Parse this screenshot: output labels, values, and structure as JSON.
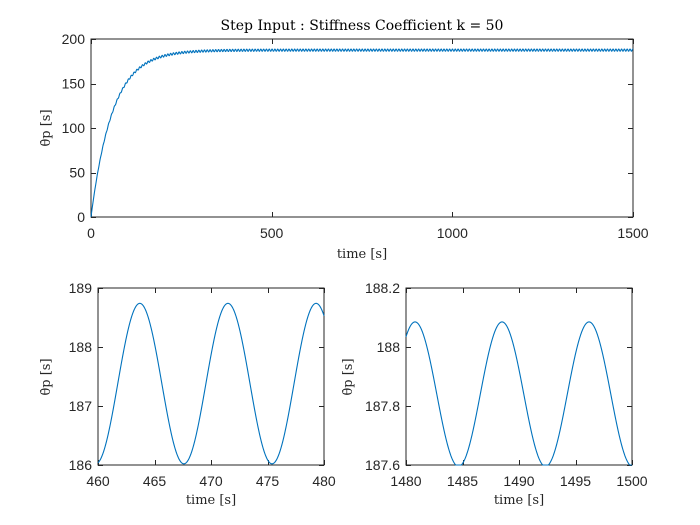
{
  "chart_data": [
    {
      "type": "line",
      "title": "Step Input : Stiffness Coefficient k = 50",
      "xlabel": "time [s]",
      "ylabel": "θ̇p [s]",
      "xlim": [
        0,
        1500
      ],
      "ylim": [
        0,
        200
      ],
      "xticks": [
        0,
        500,
        1000,
        1500
      ],
      "yticks": [
        0,
        50,
        100,
        150,
        200
      ],
      "xtick_labels": [
        "0",
        "500",
        "1000",
        "1500"
      ],
      "ytick_labels": [
        "0",
        "50",
        "100",
        "150",
        "200"
      ],
      "grid": false,
      "color": "#0072BD",
      "series": [
        {
          "model": "first_order_step_with_ripple",
          "final_value": 187.5,
          "time_constant": 60,
          "ripple_amplitude_end": 1.35,
          "ripple_period": 7.8,
          "x": [
            0,
            10,
            20,
            40,
            60,
            80,
            100,
            150,
            200,
            250,
            300,
            400,
            500,
            700,
            1000,
            1500
          ],
          "y": [
            0,
            29,
            53,
            81,
            118,
            141,
            153,
            175,
            182,
            186,
            187,
            187.5,
            187.5,
            187.5,
            187.5,
            187.5
          ]
        }
      ]
    },
    {
      "type": "line",
      "title": "",
      "xlabel": "time [s]",
      "ylabel": "θ̇p [s]",
      "xlim": [
        460,
        480
      ],
      "ylim": [
        186,
        189
      ],
      "xticks": [
        460,
        465,
        470,
        475,
        480
      ],
      "yticks": [
        186,
        187,
        188,
        189
      ],
      "xtick_labels": [
        "460",
        "465",
        "470",
        "475",
        "480"
      ],
      "ytick_labels": [
        "186",
        "187",
        "188",
        "189"
      ],
      "grid": false,
      "color": "#0072BD",
      "series": [
        {
          "model": "sinusoid",
          "mean": 187.38,
          "amplitude": 1.36,
          "period": 7.8,
          "peak_times": [
            463.7,
            471.5,
            479.3
          ],
          "trough_times": [
            459.8,
            467.6,
            475.4
          ],
          "x": [
            460,
            463.7,
            467.6,
            471.5,
            475.4,
            479.3,
            480
          ],
          "y": [
            186.02,
            188.72,
            186.03,
            188.74,
            186.05,
            188.77,
            188.6
          ]
        }
      ]
    },
    {
      "type": "line",
      "title": "",
      "xlabel": "time [s]",
      "ylabel": "θ̇p [s]",
      "xlim": [
        1480,
        1500
      ],
      "ylim": [
        187.6,
        188.2
      ],
      "xticks": [
        1480,
        1485,
        1490,
        1495,
        1500
      ],
      "yticks": [
        187.6,
        187.8,
        188,
        188.2
      ],
      "xtick_labels": [
        "1480",
        "1485",
        "1490",
        "1495",
        "1500"
      ],
      "ytick_labels": [
        "187.6",
        "187.8",
        "188",
        "188.2"
      ],
      "grid": false,
      "color": "#0072BD",
      "series": [
        {
          "model": "sinusoid",
          "mean": 187.84,
          "amplitude": 0.245,
          "period": 7.7,
          "peak_times": [
            1480.8,
            1488.5,
            1496.2
          ],
          "trough_times": [
            1484.65,
            1492.35,
            1500.05
          ],
          "x": [
            1480,
            1480.8,
            1484.65,
            1488.5,
            1492.35,
            1496.2,
            1500
          ],
          "y": [
            188.06,
            188.085,
            187.595,
            188.085,
            187.595,
            188.08,
            187.6
          ]
        }
      ]
    }
  ]
}
